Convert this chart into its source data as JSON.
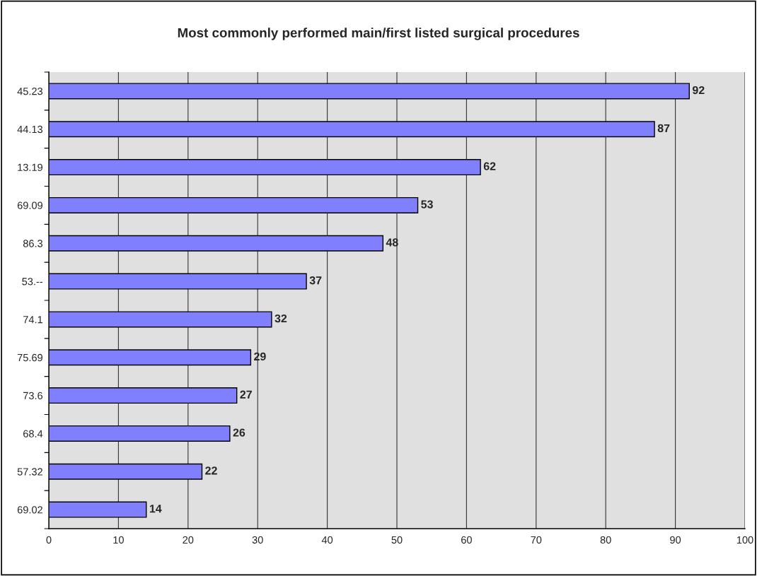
{
  "chart_data": {
    "type": "bar",
    "orientation": "horizontal",
    "title": "Most commonly performed main/first listed surgical procedures",
    "categories": [
      "45.23",
      "44.13",
      "13.19",
      "69.09",
      "86.3",
      "53.--",
      "74.1",
      "75.69",
      "73.6",
      "68.4",
      "57.32",
      "69.02"
    ],
    "values": [
      92,
      87,
      62,
      53,
      48,
      37,
      32,
      29,
      27,
      26,
      22,
      14
    ],
    "color": "#8080ff",
    "data_labels": true,
    "grid": "x",
    "xlim": [
      0,
      100
    ],
    "xticks": [
      0,
      10,
      20,
      30,
      40,
      50,
      60,
      70,
      80,
      90,
      100
    ]
  }
}
